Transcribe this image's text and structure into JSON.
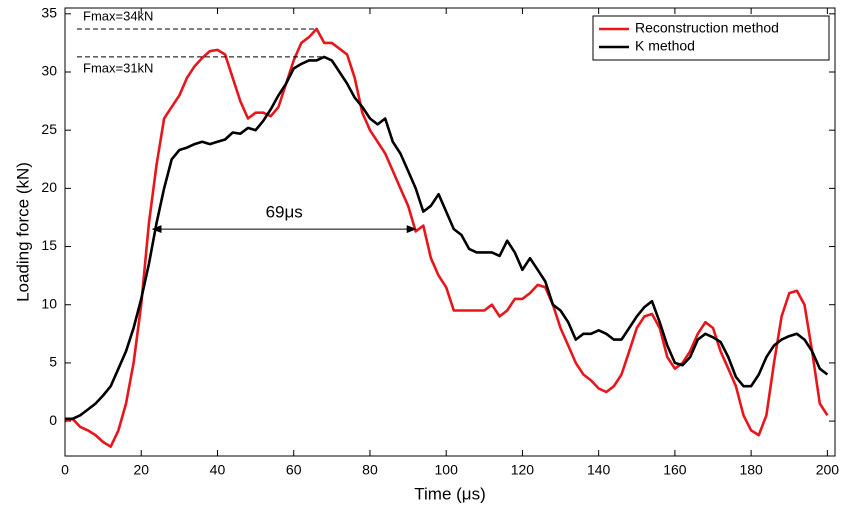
{
  "chart_data": {
    "type": "line",
    "xlabel": "Time (μs)",
    "ylabel": "Loading force (kN)",
    "x": [
      0,
      2,
      4,
      6,
      8,
      10,
      12,
      14,
      16,
      18,
      20,
      22,
      24,
      26,
      28,
      30,
      32,
      34,
      36,
      38,
      40,
      42,
      44,
      46,
      48,
      50,
      52,
      54,
      56,
      58,
      60,
      62,
      64,
      66,
      68,
      70,
      72,
      74,
      76,
      78,
      80,
      82,
      84,
      86,
      88,
      90,
      92,
      94,
      96,
      98,
      100,
      102,
      104,
      106,
      108,
      110,
      112,
      114,
      116,
      118,
      120,
      122,
      124,
      126,
      128,
      130,
      132,
      134,
      136,
      138,
      140,
      142,
      144,
      146,
      148,
      150,
      152,
      154,
      156,
      158,
      160,
      162,
      164,
      166,
      168,
      170,
      172,
      174,
      176,
      178,
      180,
      182,
      184,
      186,
      188,
      190,
      192,
      194,
      196,
      198,
      200
    ],
    "series": [
      {
        "name": "Reconstruction method",
        "color": "#e8161b",
        "values": [
          0,
          0.2,
          -0.5,
          -0.8,
          -1.2,
          -1.8,
          -2.2,
          -0.8,
          1.5,
          5,
          10,
          17,
          22,
          26,
          27,
          28,
          29.5,
          30.5,
          31.2,
          31.8,
          31.9,
          31.5,
          29.5,
          27.5,
          26,
          26.5,
          26.5,
          26.2,
          27,
          29,
          31,
          32.5,
          33,
          33.7,
          32.5,
          32.5,
          32,
          31.5,
          29.5,
          26.5,
          25,
          24,
          23,
          21.5,
          20,
          18.5,
          16.3,
          16.8,
          14,
          12.5,
          11.5,
          9.5,
          9.5,
          9.5,
          9.5,
          9.5,
          10,
          9,
          9.5,
          10.5,
          10.5,
          11,
          11.7,
          11.5,
          10,
          8,
          6.5,
          5,
          4,
          3.5,
          2.8,
          2.5,
          3,
          4,
          6,
          8,
          9,
          9.2,
          8,
          5.5,
          4.5,
          5,
          6,
          7.5,
          8.5,
          8,
          6,
          4.5,
          3,
          0.5,
          -0.8,
          -1.2,
          0.5,
          5,
          9,
          11,
          11.2,
          10,
          6,
          1.5,
          0.5
        ]
      },
      {
        "name": "K method",
        "color": "#000000",
        "values": [
          0.2,
          0.2,
          0.5,
          1,
          1.5,
          2.2,
          3,
          4.5,
          6,
          8,
          10.5,
          13.5,
          17,
          20,
          22.5,
          23.3,
          23.5,
          23.8,
          24,
          23.8,
          24,
          24.2,
          24.8,
          24.7,
          25.2,
          25,
          25.8,
          26.8,
          28,
          29,
          30.3,
          30.7,
          31,
          31,
          31.3,
          31,
          30,
          29,
          27.8,
          27,
          26,
          25.5,
          26,
          24,
          23,
          21.5,
          20,
          18,
          18.5,
          19.5,
          18,
          16.5,
          16,
          14.8,
          14.5,
          14.5,
          14.5,
          14.2,
          15.5,
          14.5,
          13,
          14,
          13,
          12,
          10,
          9.5,
          8.5,
          7,
          7.5,
          7.5,
          7.8,
          7.5,
          7,
          7,
          8,
          9,
          9.8,
          10.3,
          8.5,
          6.5,
          5,
          4.8,
          5.5,
          7,
          7.5,
          7.2,
          6.8,
          5.5,
          3.8,
          3,
          3,
          4,
          5.5,
          6.5,
          7,
          7.3,
          7.5,
          7,
          6,
          4.5,
          4
        ]
      }
    ],
    "peak_labels": [
      "Fmax=34kN",
      "Fmax=31kN"
    ],
    "arrow": {
      "label": "69μs",
      "x": [
        23,
        92
      ],
      "y": 16.5
    },
    "xlim": [
      0,
      202
    ],
    "ylim": [
      -3,
      35.5
    ],
    "xticks": [
      0,
      20,
      40,
      60,
      80,
      100,
      120,
      140,
      160,
      180,
      200
    ],
    "yticks": [
      0,
      5,
      10,
      15,
      20,
      25,
      30,
      35
    ],
    "legend": "upper right"
  }
}
